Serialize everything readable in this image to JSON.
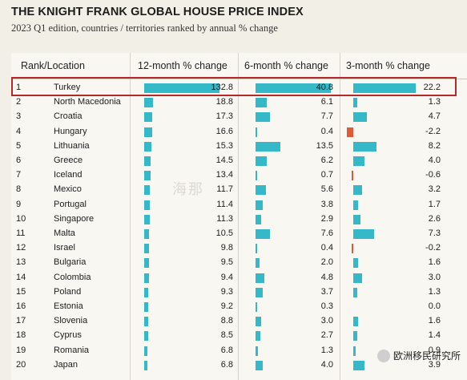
{
  "title": "THE KNIGHT FRANK GLOBAL HOUSE PRICE INDEX",
  "subtitle": "2023 Q1 edition, countries / territories ranked by annual % change",
  "headers": {
    "rank_location": "Rank/Location",
    "m12": "12-month % change",
    "m6": "6-month % change",
    "m3": "3-month % change"
  },
  "colors": {
    "positive": "#35b8c8",
    "negative": "#e05a3a",
    "highlight": "#b42a2a"
  },
  "watermark": "海那",
  "source_badge": "欧洲移民研究所",
  "chart_data": {
    "type": "table",
    "columns": [
      "Rank",
      "Location",
      "12-month % change",
      "6-month % change",
      "3-month % change"
    ],
    "rows": [
      {
        "rank": "1",
        "location": "Turkey",
        "m12": "132.8",
        "m6": "40.8",
        "m3": "22.2"
      },
      {
        "rank": "2",
        "location": "North Macedonia",
        "m12": "18.8",
        "m6": "6.1",
        "m3": "1.3"
      },
      {
        "rank": "3",
        "location": "Croatia",
        "m12": "17.3",
        "m6": "7.7",
        "m3": "4.7"
      },
      {
        "rank": "4",
        "location": "Hungary",
        "m12": "16.6",
        "m6": "0.4",
        "m3": "-2.2"
      },
      {
        "rank": "5",
        "location": "Lithuania",
        "m12": "15.3",
        "m6": "13.5",
        "m3": "8.2"
      },
      {
        "rank": "6",
        "location": "Greece",
        "m12": "14.5",
        "m6": "6.2",
        "m3": "4.0"
      },
      {
        "rank": "7",
        "location": "Iceland",
        "m12": "13.4",
        "m6": "0.7",
        "m3": "-0.6"
      },
      {
        "rank": "8",
        "location": "Mexico",
        "m12": "11.7",
        "m6": "5.6",
        "m3": "3.2"
      },
      {
        "rank": "9",
        "location": "Portugal",
        "m12": "11.4",
        "m6": "3.8",
        "m3": "1.7"
      },
      {
        "rank": "10",
        "location": "Singapore",
        "m12": "11.3",
        "m6": "2.9",
        "m3": "2.6"
      },
      {
        "rank": "11",
        "location": "Malta",
        "m12": "10.5",
        "m6": "7.6",
        "m3": "7.3"
      },
      {
        "rank": "12",
        "location": "Israel",
        "m12": "9.8",
        "m6": "0.4",
        "m3": "-0.2"
      },
      {
        "rank": "13",
        "location": "Bulgaria",
        "m12": "9.5",
        "m6": "2.0",
        "m3": "1.6"
      },
      {
        "rank": "14",
        "location": "Colombia",
        "m12": "9.4",
        "m6": "4.8",
        "m3": "3.0"
      },
      {
        "rank": "15",
        "location": "Poland",
        "m12": "9.3",
        "m6": "3.7",
        "m3": "1.3"
      },
      {
        "rank": "16",
        "location": "Estonia",
        "m12": "9.2",
        "m6": "0.3",
        "m3": "0.0"
      },
      {
        "rank": "17",
        "location": "Slovenia",
        "m12": "8.8",
        "m6": "3.0",
        "m3": "1.6"
      },
      {
        "rank": "18",
        "location": "Cyprus",
        "m12": "8.5",
        "m6": "2.7",
        "m3": "1.4"
      },
      {
        "rank": "19",
        "location": "Romania",
        "m12": "6.8",
        "m6": "1.3",
        "m3": "0.9"
      },
      {
        "rank": "20",
        "location": "Japan",
        "m12": "6.8",
        "m6": "4.0",
        "m3": "3.9"
      }
    ],
    "highlighted_rank": "1"
  }
}
